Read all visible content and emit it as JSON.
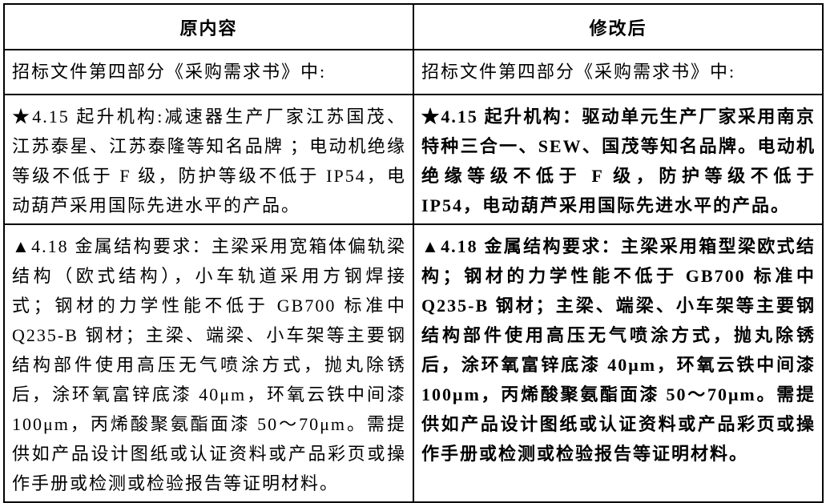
{
  "table": {
    "header": {
      "left": "原内容",
      "right": "修改后"
    },
    "rows": [
      {
        "left": "招标文件第四部分《采购需求书》中:",
        "right": "招标文件第四部分《采购需求书》中:"
      },
      {
        "left": "★4.15 起升机构:减速器生产厂家江苏国茂、江苏泰星、江苏泰隆等知名品牌 ；电动机绝缘等级不低于 F 级，防护等级不低于 IP54，电动葫芦采用国际先进水平的产品。",
        "right": "★4.15 起升机构：驱动单元生产厂家采用南京特种三合一、SEW、国茂等知名品牌。电动机绝缘等级不低于 F 级，防护等级不低于 IP54，电动葫芦采用国际先进水平的产品。"
      },
      {
        "left": "▲4.18 金属结构要求：主梁采用宽箱体偏轨梁结构（欧式结构），小车轨道采用方钢焊接式；钢材的力学性能不低于 GB700 标准中 Q235-B 钢材；主梁、端梁、小车架等主要钢结构部件使用高压无气喷涂方式，抛丸除锈后，涂环氧富锌底漆 40μm，环氧云铁中间漆 100μm，丙烯酸聚氨酯面漆 50～70μm。需提供如产品设计图纸或认证资料或产品彩页或操作手册或检测或检验报告等证明材料。",
        "right": "▲4.18 金属结构要求：主梁采用箱型梁欧式结构；钢材的力学性能不低于 GB700 标准中 Q235-B 钢材；主梁、端梁、小车架等主要钢结构部件使用高压无气喷涂方式，抛丸除锈后，涂环氧富锌底漆 40μm，环氧云铁中间漆 100μm，丙烯酸聚氨酯面漆 50～70μm。需提供如产品设计图纸或认证资料或产品彩页或操作手册或检测或检验报告等证明材料。"
      }
    ]
  },
  "colors": {
    "border": "#000000",
    "text": "#000000",
    "background": "#ffffff"
  }
}
